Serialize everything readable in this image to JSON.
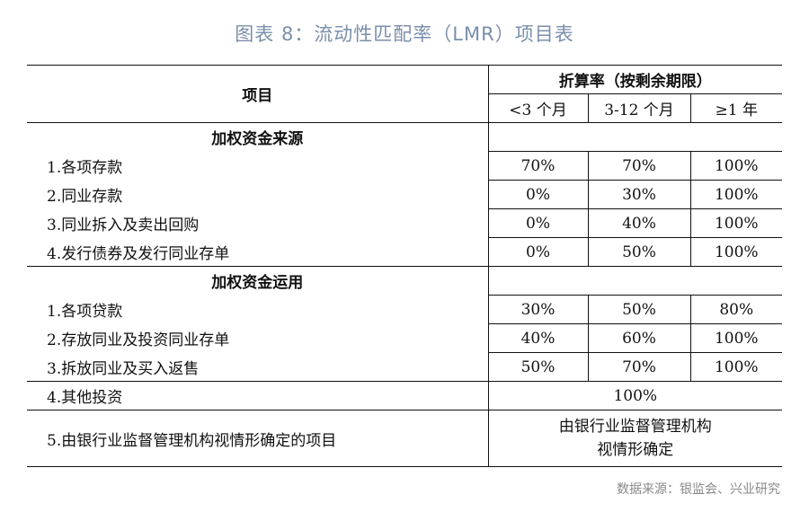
{
  "title": "图表 8：流动性匹配率（LMR）项目表",
  "table": {
    "col_item": "项目",
    "col_rate": "折算率（按剩余期限）",
    "terms": [
      "<3 个月",
      "3-12 个月",
      "≥1 年"
    ],
    "sections": [
      {
        "name": "加权资金来源",
        "rows": [
          {
            "label": "1.各项存款",
            "values": [
              "70%",
              "70%",
              "100%"
            ]
          },
          {
            "label": "2.同业存款",
            "values": [
              "0%",
              "30%",
              "100%"
            ]
          },
          {
            "label": "3.同业拆入及卖出回购",
            "values": [
              "0%",
              "40%",
              "100%"
            ]
          },
          {
            "label": "4.发行债券及发行同业存单",
            "values": [
              "0%",
              "50%",
              "100%"
            ]
          }
        ]
      },
      {
        "name": "加权资金运用",
        "rows": [
          {
            "label": "1.各项贷款",
            "values": [
              "30%",
              "50%",
              "80%"
            ]
          },
          {
            "label": "2.存放同业及投资同业存单",
            "values": [
              "40%",
              "60%",
              "100%"
            ]
          },
          {
            "label": "3.拆放同业及买入返售",
            "values": [
              "50%",
              "70%",
              "100%"
            ]
          }
        ]
      }
    ],
    "other_investment": {
      "label": "4.其他投资",
      "value": "100%"
    },
    "regulator_item": {
      "label": "5.由银行业监督管理机构视情形确定的项目",
      "value_line1": "由银行业监督管理机构",
      "value_line2": "视情形确定"
    }
  },
  "source": "数据来源：银监会、兴业研究"
}
